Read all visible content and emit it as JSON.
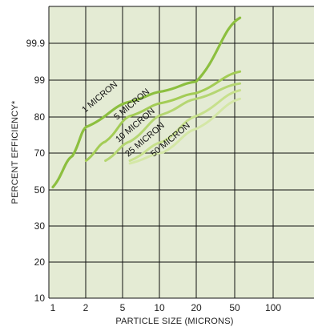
{
  "chart_data": {
    "type": "line",
    "xlabel": "PARTICLE SIZE (MICRONS)",
    "ylabel": "PERCENT EFFICIENCY*",
    "x_ticks": [
      "1",
      "2",
      "5",
      "10",
      "20",
      "50",
      "100"
    ],
    "y_ticks": [
      "10",
      "20",
      "30",
      "50",
      "70",
      "80",
      "99",
      "99.9"
    ],
    "grid": true,
    "colors": {
      "background": "#e4ebd4",
      "grid": "#111111",
      "series": [
        "#8cbf3f",
        "#a3cc55",
        "#b5d672",
        "#c7e08c",
        "#d4e7a6"
      ]
    },
    "series": [
      {
        "name": "1 MICRON",
        "points": [
          [
            1,
            51
          ],
          [
            1.5,
            68
          ],
          [
            2,
            77
          ],
          [
            5,
            87.5
          ],
          [
            10,
            93
          ],
          [
            20,
            98
          ],
          [
            50,
            100.6
          ]
        ]
      },
      {
        "name": "5 MICRON",
        "points": [
          [
            2,
            65.5
          ],
          [
            3,
            73
          ],
          [
            5,
            80
          ],
          [
            10,
            87
          ],
          [
            20,
            92
          ],
          [
            50,
            99.2
          ]
        ]
      },
      {
        "name": "10 MICRON",
        "points": [
          [
            3,
            65.5
          ],
          [
            5,
            73
          ],
          [
            10,
            81
          ],
          [
            20,
            89
          ],
          [
            50,
            97
          ]
        ]
      },
      {
        "name": "25 MICRON",
        "points": [
          [
            5,
            65.5
          ],
          [
            10,
            73
          ],
          [
            20,
            80
          ],
          [
            50,
            93.5
          ]
        ]
      },
      {
        "name": "50 MICRON",
        "points": [
          [
            5,
            64
          ],
          [
            10,
            70
          ],
          [
            20,
            76.5
          ],
          [
            50,
            89
          ]
        ]
      }
    ]
  }
}
